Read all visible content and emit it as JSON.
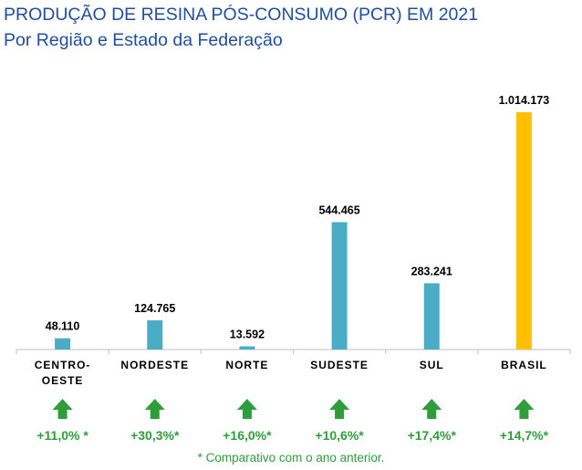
{
  "title": "PRODUÇÃO DE RESINA PÓS-CONSUMO (PCR) EM 2021",
  "subtitle": "Por Região e Estado da Federação",
  "footnote": "* Comparativo com o ano anterior.",
  "colors": {
    "title": "#1f4e9e",
    "bar": "#4bacc6",
    "bar_highlight": "#ffc000",
    "growth": "#2e9e3a",
    "axis": "#bfbfbf",
    "text": "#000000"
  },
  "chart_data": {
    "type": "bar",
    "title": "PRODUÇÃO DE RESINA PÓS-CONSUMO (PCR) EM 2021",
    "subtitle": "Por Região e Estado da Federação",
    "categories": [
      [
        "CENTRO-",
        "OESTE"
      ],
      [
        "NORDESTE"
      ],
      [
        "NORTE"
      ],
      [
        "SUDESTE"
      ],
      [
        "SUL"
      ],
      [
        "BRASIL"
      ]
    ],
    "values": [
      48110,
      124765,
      13592,
      544465,
      283241,
      1014173
    ],
    "value_labels": [
      "48.110",
      "124.765",
      "13.592",
      "544.465",
      "283.241",
      "1.014.173"
    ],
    "growth_labels": [
      "+11,0% *",
      "+30,3%*",
      "+16,0%*",
      "+10,6%*",
      "+17,4%*",
      "+14,7%*"
    ],
    "growth_icon": "arrow-up-icon",
    "highlight_category": "BRASIL",
    "ylim": [
      0,
      1014173
    ],
    "grid": false,
    "legend": "none"
  }
}
